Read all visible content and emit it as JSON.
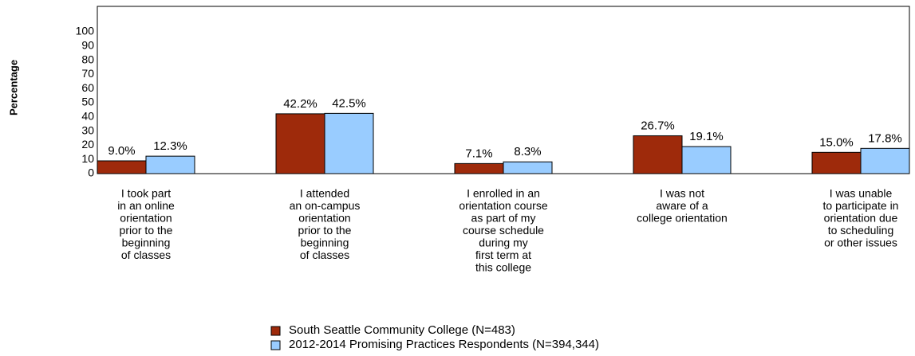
{
  "chart_data": {
    "type": "bar",
    "y_label": "Percentage",
    "categories": [
      [
        "I took part",
        "in an online",
        "orientation",
        "prior to the",
        "beginning",
        "of classes"
      ],
      [
        "I attended",
        "an on-campus",
        "orientation",
        "prior to the",
        "beginning",
        "of classes"
      ],
      [
        "I enrolled in an",
        "orientation course",
        "as part of my",
        "course schedule",
        "during my",
        "first term at",
        "this college"
      ],
      [
        "I was not",
        "aware of a",
        "college orientation"
      ],
      [
        "I was unable",
        "to participate in",
        "orientation due",
        "to scheduling",
        "or other issues"
      ]
    ],
    "series": [
      {
        "name": "South Seattle Community College (N=483)",
        "color": "#9e2a0b",
        "values": [
          9.0,
          42.2,
          7.1,
          26.7,
          15.0
        ],
        "value_labels": [
          "9.0%",
          "42.2%",
          "7.1%",
          "26.7%",
          "15.0%"
        ]
      },
      {
        "name": "2012-2014 Promising Practices Respondents (N=394,344)",
        "color": "#99ccff",
        "values": [
          12.3,
          42.5,
          8.3,
          19.1,
          17.8
        ],
        "value_labels": [
          "12.3%",
          "42.5%",
          "8.3%",
          "19.1%",
          "17.8%"
        ]
      }
    ],
    "ylim": [
      0,
      118
    ],
    "yticks": [
      0,
      10,
      20,
      30,
      40,
      50,
      60,
      70,
      80,
      90,
      100
    ]
  }
}
